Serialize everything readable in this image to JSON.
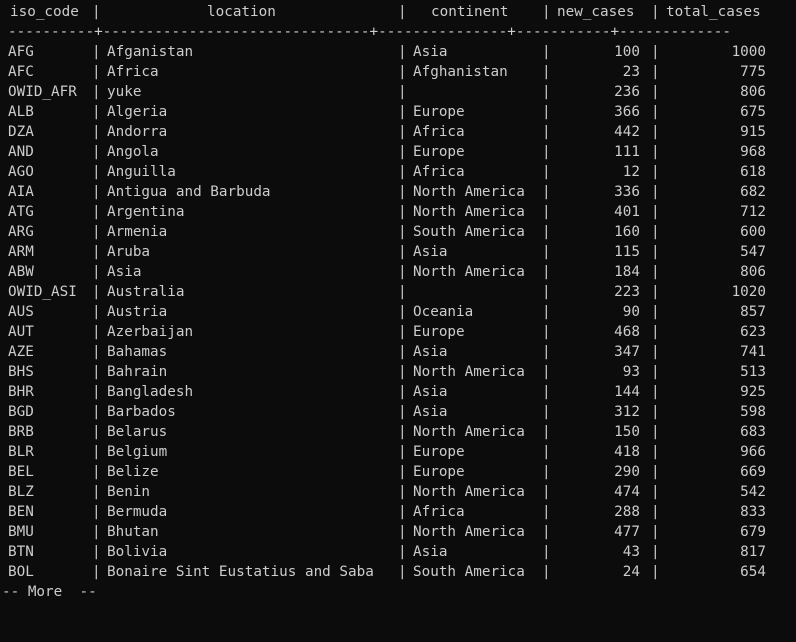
{
  "headers": {
    "iso_code": "iso_code",
    "location": "location",
    "continent": "continent",
    "new_cases": "new_cases",
    "total_cases": "total_cases"
  },
  "separator": "|",
  "rule": "----------+-------------------------------+---------------+-----------+-------------",
  "rows": [
    {
      "iso_code": "AFG",
      "location": "Afganistan",
      "continent": "Asia",
      "new_cases": "100",
      "total_cases": "1000"
    },
    {
      "iso_code": "AFC",
      "location": "Africa",
      "continent": "Afghanistan",
      "new_cases": "23",
      "total_cases": "775"
    },
    {
      "iso_code": "OWID_AFR",
      "location": "yuke",
      "continent": "",
      "new_cases": "236",
      "total_cases": "806"
    },
    {
      "iso_code": "ALB",
      "location": "Algeria",
      "continent": "Europe",
      "new_cases": "366",
      "total_cases": "675"
    },
    {
      "iso_code": "DZA",
      "location": "Andorra",
      "continent": "Africa",
      "new_cases": "442",
      "total_cases": "915"
    },
    {
      "iso_code": "AND",
      "location": "Angola",
      "continent": "Europe",
      "new_cases": "111",
      "total_cases": "968"
    },
    {
      "iso_code": "AGO",
      "location": "Anguilla",
      "continent": "Africa",
      "new_cases": "12",
      "total_cases": "618"
    },
    {
      "iso_code": "AIA",
      "location": "Antigua and Barbuda",
      "continent": "North America",
      "new_cases": "336",
      "total_cases": "682"
    },
    {
      "iso_code": "ATG",
      "location": "Argentina",
      "continent": "North America",
      "new_cases": "401",
      "total_cases": "712"
    },
    {
      "iso_code": "ARG",
      "location": "Armenia",
      "continent": "South America",
      "new_cases": "160",
      "total_cases": "600"
    },
    {
      "iso_code": "ARM",
      "location": "Aruba",
      "continent": "Asia",
      "new_cases": "115",
      "total_cases": "547"
    },
    {
      "iso_code": "ABW",
      "location": "Asia",
      "continent": "North America",
      "new_cases": "184",
      "total_cases": "806"
    },
    {
      "iso_code": "OWID_ASI",
      "location": "Australia",
      "continent": "",
      "new_cases": "223",
      "total_cases": "1020"
    },
    {
      "iso_code": "AUS",
      "location": "Austria",
      "continent": "Oceania",
      "new_cases": "90",
      "total_cases": "857"
    },
    {
      "iso_code": "AUT",
      "location": "Azerbaijan",
      "continent": "Europe",
      "new_cases": "468",
      "total_cases": "623"
    },
    {
      "iso_code": "AZE",
      "location": "Bahamas",
      "continent": "Asia",
      "new_cases": "347",
      "total_cases": "741"
    },
    {
      "iso_code": "BHS",
      "location": "Bahrain",
      "continent": "North America",
      "new_cases": "93",
      "total_cases": "513"
    },
    {
      "iso_code": "BHR",
      "location": "Bangladesh",
      "continent": "Asia",
      "new_cases": "144",
      "total_cases": "925"
    },
    {
      "iso_code": "BGD",
      "location": "Barbados",
      "continent": "Asia",
      "new_cases": "312",
      "total_cases": "598"
    },
    {
      "iso_code": "BRB",
      "location": "Belarus",
      "continent": "North America",
      "new_cases": "150",
      "total_cases": "683"
    },
    {
      "iso_code": "BLR",
      "location": "Belgium",
      "continent": "Europe",
      "new_cases": "418",
      "total_cases": "966"
    },
    {
      "iso_code": "BEL",
      "location": "Belize",
      "continent": "Europe",
      "new_cases": "290",
      "total_cases": "669"
    },
    {
      "iso_code": "BLZ",
      "location": "Benin",
      "continent": "North America",
      "new_cases": "474",
      "total_cases": "542"
    },
    {
      "iso_code": "BEN",
      "location": "Bermuda",
      "continent": "Africa",
      "new_cases": "288",
      "total_cases": "833"
    },
    {
      "iso_code": "BMU",
      "location": "Bhutan",
      "continent": "North America",
      "new_cases": "477",
      "total_cases": "679"
    },
    {
      "iso_code": "BTN",
      "location": "Bolivia",
      "continent": "Asia",
      "new_cases": "43",
      "total_cases": "817"
    },
    {
      "iso_code": "BOL",
      "location": "Bonaire Sint Eustatius and Saba",
      "continent": "South America",
      "new_cases": "24",
      "total_cases": "654"
    }
  ],
  "pager": "-- More  --"
}
